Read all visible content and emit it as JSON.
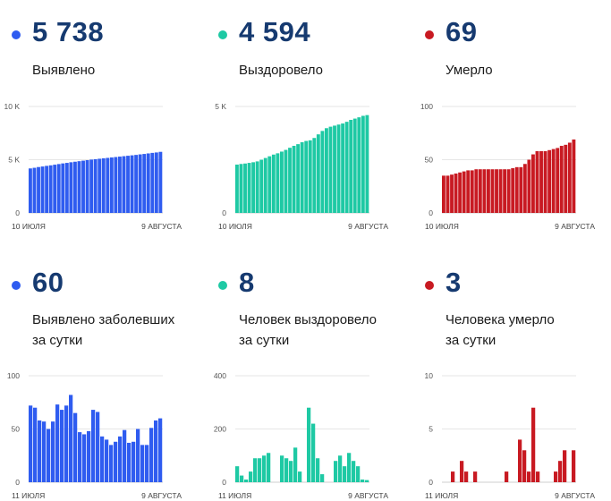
{
  "cards": [
    {
      "value": "5 738",
      "label_lines": [
        "Выявлено"
      ],
      "color": "#2f5cf0",
      "chart_data": {
        "type": "bar",
        "title": "Выявлено",
        "ylim": [
          0,
          10000
        ],
        "yticks": [
          0,
          5000,
          10000
        ],
        "ytick_labels": [
          "0",
          "5 K",
          "10 K"
        ],
        "x_start_label": "10 ИЮЛЯ",
        "x_end_label": "9 АВГУСТА",
        "values": [
          4180,
          4240,
          4310,
          4360,
          4420,
          4470,
          4530,
          4590,
          4650,
          4700,
          4760,
          4810,
          4860,
          4910,
          4960,
          5010,
          5050,
          5090,
          5130,
          5170,
          5210,
          5250,
          5290,
          5330,
          5370,
          5410,
          5450,
          5500,
          5540,
          5590,
          5640,
          5680,
          5738
        ]
      }
    },
    {
      "value": "4 594",
      "label_lines": [
        "Выздоровело"
      ],
      "color": "#1ec9a4",
      "chart_data": {
        "type": "bar",
        "title": "Выздоровело",
        "ylim": [
          0,
          5000
        ],
        "yticks": [
          0,
          5000
        ],
        "ytick_labels": [
          "0",
          "5 K"
        ],
        "x_start_label": "10 ИЮЛЯ",
        "x_end_label": "9 АВГУСТА",
        "values": [
          2270,
          2300,
          2320,
          2350,
          2380,
          2420,
          2500,
          2580,
          2660,
          2740,
          2800,
          2880,
          2960,
          3060,
          3150,
          3230,
          3320,
          3380,
          3410,
          3520,
          3690,
          3850,
          3980,
          4050,
          4100,
          4150,
          4200,
          4280,
          4370,
          4430,
          4490,
          4560,
          4594
        ]
      }
    },
    {
      "value": "69",
      "label_lines": [
        "Умерло"
      ],
      "color": "#c81a22",
      "chart_data": {
        "type": "bar",
        "title": "Умерло",
        "ylim": [
          0,
          100
        ],
        "yticks": [
          0,
          50,
          100
        ],
        "ytick_labels": [
          "0",
          "50",
          "100"
        ],
        "x_start_label": "10 ИЮЛЯ",
        "x_end_label": "9 АВГУСТА",
        "values": [
          35,
          35,
          36,
          37,
          38,
          39,
          40,
          40,
          41,
          41,
          41,
          41,
          41,
          41,
          41,
          41,
          41,
          42,
          43,
          43,
          46,
          50,
          55,
          58,
          58,
          58,
          59,
          60,
          61,
          63,
          64,
          66,
          69
        ]
      }
    },
    {
      "value": "60",
      "label_lines": [
        "Выявлено заболевших",
        "за сутки"
      ],
      "color": "#2f5cf0",
      "chart_data": {
        "type": "bar",
        "title": "Выявлено заболевших за сутки",
        "ylim": [
          0,
          100
        ],
        "yticks": [
          0,
          50,
          100
        ],
        "ytick_labels": [
          "0",
          "50",
          "100"
        ],
        "x_start_label": "11 ИЮЛЯ",
        "x_end_label": "9 АВГУСТА",
        "values": [
          72,
          70,
          58,
          57,
          50,
          57,
          73,
          68,
          72,
          82,
          65,
          47,
          45,
          48,
          68,
          66,
          43,
          40,
          35,
          38,
          43,
          49,
          37,
          38,
          50,
          35,
          35,
          51,
          58,
          60
        ]
      }
    },
    {
      "value": "8",
      "label_lines": [
        "Человек выздоровело",
        "за сутки"
      ],
      "color": "#1ec9a4",
      "chart_data": {
        "type": "bar",
        "title": "Человек выздоровело за сутки",
        "ylim": [
          0,
          400
        ],
        "yticks": [
          0,
          200,
          400
        ],
        "ytick_labels": [
          "0",
          "200",
          "400"
        ],
        "x_start_label": "11 ИЮЛЯ",
        "x_end_label": "9 АВГУСТА",
        "values": [
          60,
          25,
          10,
          40,
          90,
          90,
          100,
          110,
          0,
          0,
          100,
          90,
          80,
          130,
          40,
          0,
          280,
          220,
          90,
          30,
          0,
          0,
          80,
          100,
          60,
          110,
          80,
          60,
          10,
          8
        ]
      }
    },
    {
      "value": "3",
      "label_lines": [
        "Человека умерло",
        "за сутки"
      ],
      "color": "#c81a22",
      "chart_data": {
        "type": "bar",
        "title": "Человека умерло за сутки",
        "ylim": [
          0,
          10
        ],
        "yticks": [
          0,
          5,
          10
        ],
        "ytick_labels": [
          "0",
          "5",
          "10"
        ],
        "x_start_label": "11 ИЮЛЯ",
        "x_end_label": "9 АВГУСТА",
        "values": [
          0,
          0,
          1,
          0,
          2,
          1,
          0,
          1,
          0,
          0,
          0,
          0,
          0,
          0,
          1,
          0,
          0,
          4,
          3,
          1,
          7,
          1,
          0,
          0,
          0,
          1,
          2,
          3,
          0,
          3
        ]
      }
    }
  ]
}
